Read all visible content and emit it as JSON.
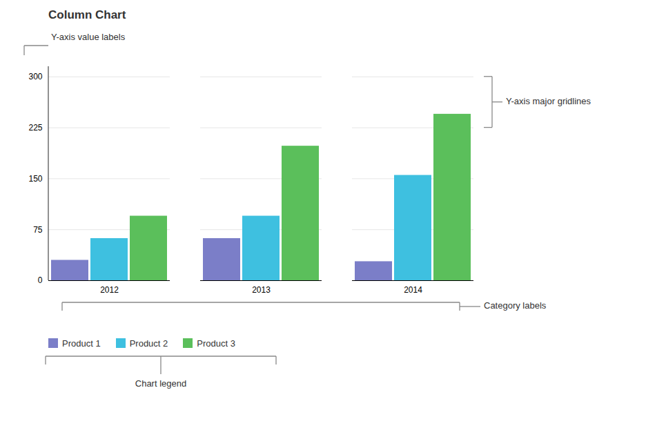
{
  "chart_data": {
    "type": "bar",
    "title": "Column Chart",
    "categories": [
      "2012",
      "2013",
      "2014"
    ],
    "series": [
      {
        "name": "Product 1",
        "values": [
          30,
          62,
          28
        ],
        "color": "#7B7EC8"
      },
      {
        "name": "Product 2",
        "values": [
          62,
          95,
          155
        ],
        "color": "#3EC0E0"
      },
      {
        "name": "Product 3",
        "values": [
          95,
          198,
          245
        ],
        "color": "#5BBF5B"
      }
    ],
    "ylim": [
      0,
      315
    ],
    "yticks": [
      0,
      75,
      150,
      225,
      300
    ],
    "grid": true,
    "legend": "bottom",
    "annotations": [
      "Y-axis value labels",
      "Y-axis major gridlines",
      "Category labels",
      "Chart legend"
    ]
  }
}
